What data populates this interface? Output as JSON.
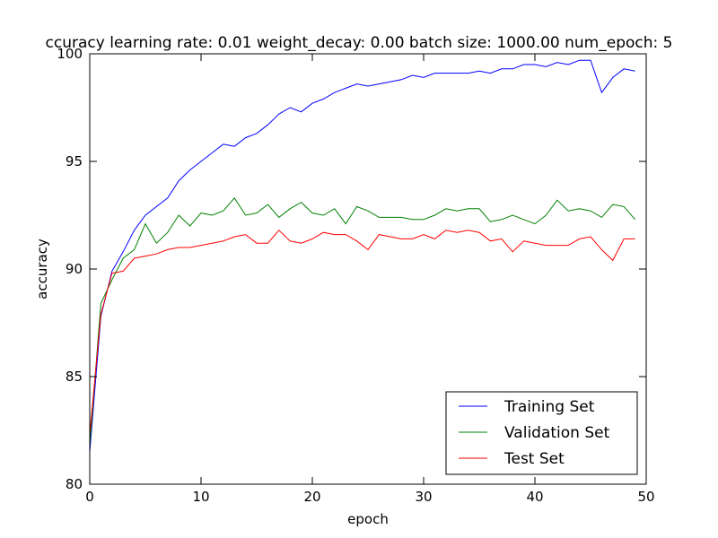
{
  "chart_data": {
    "type": "line",
    "title": "ccuracy learning rate: 0.01 weight_decay: 0.00 batch size: 1000.00 num_epoch: 5",
    "xlabel": "epoch",
    "ylabel": "accuracy",
    "xlim": [
      0,
      50
    ],
    "ylim": [
      80,
      100
    ],
    "xticks": [
      "0",
      "10",
      "20",
      "30",
      "40",
      "50"
    ],
    "yticks": [
      "80",
      "85",
      "90",
      "95",
      "100"
    ],
    "grid": false,
    "legend_position": "lower-right",
    "x": [
      0,
      1,
      2,
      3,
      4,
      5,
      6,
      7,
      8,
      9,
      10,
      11,
      12,
      13,
      14,
      15,
      16,
      17,
      18,
      19,
      20,
      21,
      22,
      23,
      24,
      25,
      26,
      27,
      28,
      29,
      30,
      31,
      32,
      33,
      34,
      35,
      36,
      37,
      38,
      39,
      40,
      41,
      42,
      43,
      44,
      45,
      46,
      47,
      48,
      49
    ],
    "series": [
      {
        "name": "Training Set",
        "color": "#0000ff",
        "values": [
          81.5,
          87.8,
          89.9,
          90.8,
          91.8,
          92.5,
          92.9,
          93.3,
          94.1,
          94.6,
          95.0,
          95.4,
          95.8,
          95.7,
          96.1,
          96.3,
          96.7,
          97.2,
          97.5,
          97.3,
          97.7,
          97.9,
          98.2,
          98.4,
          98.6,
          98.5,
          98.6,
          98.7,
          98.8,
          99.0,
          98.9,
          99.1,
          99.1,
          99.1,
          99.1,
          99.2,
          99.1,
          99.3,
          99.3,
          99.5,
          99.5,
          99.4,
          99.6,
          99.5,
          99.7,
          99.7,
          98.2,
          98.9,
          99.3,
          99.2
        ]
      },
      {
        "name": "Validation Set",
        "color": "#008000",
        "values": [
          81.8,
          88.4,
          89.5,
          90.5,
          90.9,
          92.1,
          91.2,
          91.7,
          92.5,
          92.0,
          92.6,
          92.5,
          92.7,
          93.3,
          92.5,
          92.6,
          93.0,
          92.4,
          92.8,
          93.1,
          92.6,
          92.5,
          92.8,
          92.1,
          92.9,
          92.7,
          92.4,
          92.4,
          92.4,
          92.3,
          92.3,
          92.5,
          92.8,
          92.7,
          92.8,
          92.8,
          92.2,
          92.3,
          92.5,
          92.3,
          92.1,
          92.5,
          93.2,
          92.7,
          92.8,
          92.7,
          92.4,
          93.0,
          92.9,
          92.3
        ]
      },
      {
        "name": "Test Set",
        "color": "#ff0000",
        "values": [
          82.3,
          87.9,
          89.8,
          89.9,
          90.5,
          90.6,
          90.7,
          90.9,
          91.0,
          91.0,
          91.1,
          91.2,
          91.3,
          91.5,
          91.6,
          91.2,
          91.2,
          91.8,
          91.3,
          91.2,
          91.4,
          91.7,
          91.6,
          91.6,
          91.3,
          90.9,
          91.6,
          91.5,
          91.4,
          91.4,
          91.6,
          91.4,
          91.8,
          91.7,
          91.8,
          91.7,
          91.3,
          91.4,
          90.8,
          91.3,
          91.2,
          91.1,
          91.1,
          91.1,
          91.4,
          91.5,
          90.9,
          90.4,
          91.4,
          91.4
        ]
      }
    ]
  }
}
